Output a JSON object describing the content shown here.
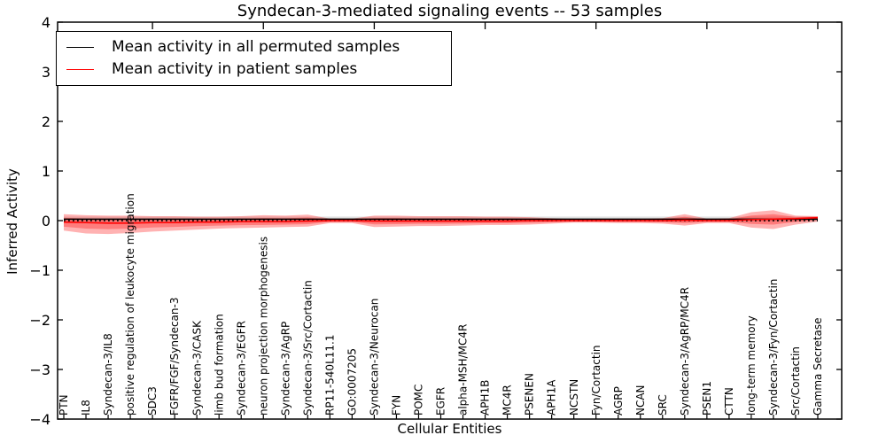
{
  "chart_data": {
    "type": "line",
    "title": "Syndecan-3-mediated signaling events -- 53 samples",
    "xlabel": "Cellular Entities",
    "ylabel": "Inferred Activity",
    "ylim": [
      -4,
      4
    ],
    "yticks": [
      4,
      3,
      2,
      1,
      0,
      -1,
      -2,
      -3,
      -4
    ],
    "grid": false,
    "legend_position": "upper left",
    "legend": [
      {
        "label": "Mean activity in all permuted samples",
        "color": "#000000"
      },
      {
        "label": "Mean activity in patient samples",
        "color": "#ff0000"
      }
    ],
    "categories": [
      "PTN",
      "IL8",
      "Syndecan-3/IL8",
      "positive regulation of leukocyte migration",
      "SDC3",
      "FGFR/FGF/Syndecan-3",
      "Syndecan-3/CASK",
      "limb bud formation",
      "Syndecan-3/EGFR",
      "neuron projection morphogenesis",
      "Syndecan-3/AgRP",
      "Syndecan-3/Src/Cortactin",
      "RP11-540L11.1",
      "GO:0007205",
      "Syndecan-3/Neurocan",
      "FYN",
      "POMC",
      "EGFR",
      "alpha-MSH/MC4R",
      "APH1B",
      "MC4R",
      "PSENEN",
      "APH1A",
      "NCSTN",
      "Fyn/Cortactin",
      "AGRP",
      "NCAN",
      "SRC",
      "Syndecan-3/AgRP/MC4R",
      "PSEN1",
      "CTTN",
      "long-term memory",
      "Syndecan-3/Fyn/Cortactin",
      "Src/Cortactin",
      "Gamma Secretase"
    ],
    "series": [
      {
        "name": "Mean activity in all permuted samples",
        "color": "#000000",
        "style": "solid",
        "values": [
          0.03,
          0.03,
          0.03,
          0.03,
          0.03,
          0.03,
          0.03,
          0.03,
          0.03,
          0.03,
          0.03,
          0.03,
          0.03,
          0.03,
          0.03,
          0.03,
          0.03,
          0.03,
          0.03,
          0.03,
          0.03,
          0.03,
          0.03,
          0.03,
          0.03,
          0.03,
          0.03,
          0.03,
          0.03,
          0.03,
          0.03,
          0.03,
          0.03,
          0.03,
          0.03
        ]
      },
      {
        "name": "Mean activity in patient samples",
        "color": "#ff0000",
        "style": "solid",
        "values": [
          -0.03,
          -0.04,
          -0.05,
          -0.05,
          -0.04,
          -0.04,
          -0.03,
          -0.03,
          -0.02,
          -0.02,
          -0.02,
          -0.01,
          0.0,
          0.0,
          -0.01,
          -0.01,
          -0.01,
          -0.01,
          -0.01,
          -0.01,
          -0.01,
          0.0,
          0.0,
          0.0,
          0.0,
          0.0,
          0.0,
          0.0,
          0.01,
          0.0,
          0.0,
          0.02,
          0.03,
          0.04,
          0.06
        ]
      }
    ],
    "patient_band": {
      "color": "#ff0000",
      "outer_alpha": 0.3,
      "inner_alpha": 0.3,
      "inner_scale": 0.55,
      "upper": [
        0.13,
        0.11,
        0.1,
        0.1,
        0.09,
        0.09,
        0.08,
        0.08,
        0.09,
        0.11,
        0.1,
        0.12,
        0.04,
        0.04,
        0.1,
        0.1,
        0.09,
        0.09,
        0.09,
        0.08,
        0.08,
        0.07,
        0.05,
        0.03,
        0.03,
        0.04,
        0.04,
        0.05,
        0.13,
        0.04,
        0.05,
        0.17,
        0.21,
        0.1,
        0.09
      ],
      "lower": [
        -0.2,
        -0.26,
        -0.27,
        -0.25,
        -0.22,
        -0.2,
        -0.18,
        -0.16,
        -0.15,
        -0.14,
        -0.13,
        -0.12,
        -0.05,
        -0.05,
        -0.13,
        -0.12,
        -0.11,
        -0.11,
        -0.1,
        -0.09,
        -0.09,
        -0.08,
        -0.06,
        -0.04,
        -0.04,
        -0.05,
        -0.05,
        -0.06,
        -0.1,
        -0.05,
        -0.05,
        -0.14,
        -0.17,
        -0.08,
        -0.02
      ]
    },
    "permuted_band": {
      "color": "#000000",
      "alpha": 0.13,
      "halfwidth": 0.05
    },
    "zero_line": {
      "value": 0,
      "color": "#000000",
      "style": "dotted"
    }
  }
}
